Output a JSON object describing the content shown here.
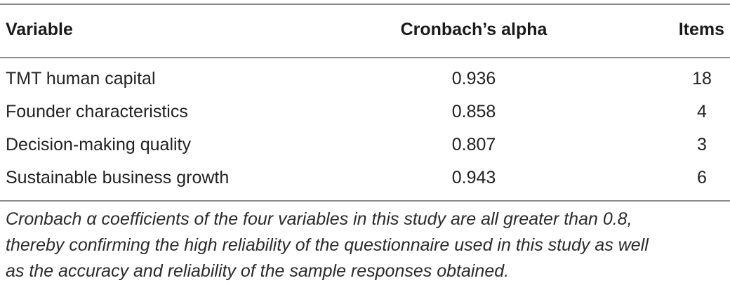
{
  "table": {
    "headers": {
      "variable": "Variable",
      "alpha": "Cronbach’s alpha",
      "items": "Items"
    },
    "rows": [
      {
        "variable": "TMT human capital",
        "alpha": "0.936",
        "items": "18"
      },
      {
        "variable": "Founder characteristics",
        "alpha": "0.858",
        "items": "4"
      },
      {
        "variable": "Decision-making quality",
        "alpha": "0.807",
        "items": "3"
      },
      {
        "variable": "Sustainable business growth",
        "alpha": "0.943",
        "items": "6"
      }
    ],
    "footnote_lines": [
      "Cronbach α coefficients of the four variables in this study are all greater than 0.8,",
      "thereby confirming the high reliability of the questionnaire used in this study as well",
      "as the accuracy and reliability of the sample responses obtained."
    ]
  }
}
